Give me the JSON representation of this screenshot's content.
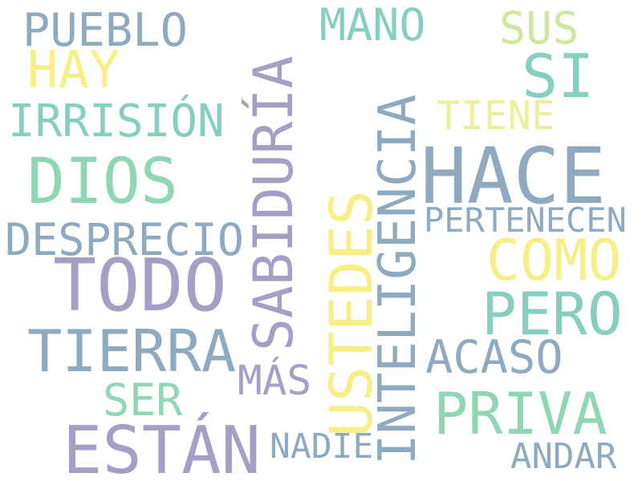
{
  "words": {
    "pueblo": "PUEBLO",
    "mano": "MANO",
    "sus": "SUS",
    "hay": "HAY",
    "si": "SI",
    "irrision": "IRRISIÓN",
    "tiene": "TIENE",
    "dios": "DIOS",
    "hace": "HACE",
    "sabiduria": "SABIDURÍA",
    "inteligencia": "INTELIGENCIA",
    "ustedes": "USTEDES",
    "pertenecen": "PERTENECEN",
    "desprecio": "DESPRECIO",
    "como": "COMO",
    "todo": "TODO",
    "pero": "PERO",
    "tierra": "TIERRA",
    "acaso": "ACASO",
    "mas": "MÁS",
    "ser": "SER",
    "priva": "PRIVA",
    "estan": "ESTÁN",
    "nadie": "NADIE",
    "andar": "ANDAR"
  },
  "colors": {
    "steel_blue": "#8fa9bf",
    "teal": "#86cfc0",
    "mint": "#8fd7b4",
    "yellow": "#f6ef86",
    "lime": "#cde79c",
    "lavender": "#a49fc5",
    "light_yellow": "#e9ef9a"
  }
}
